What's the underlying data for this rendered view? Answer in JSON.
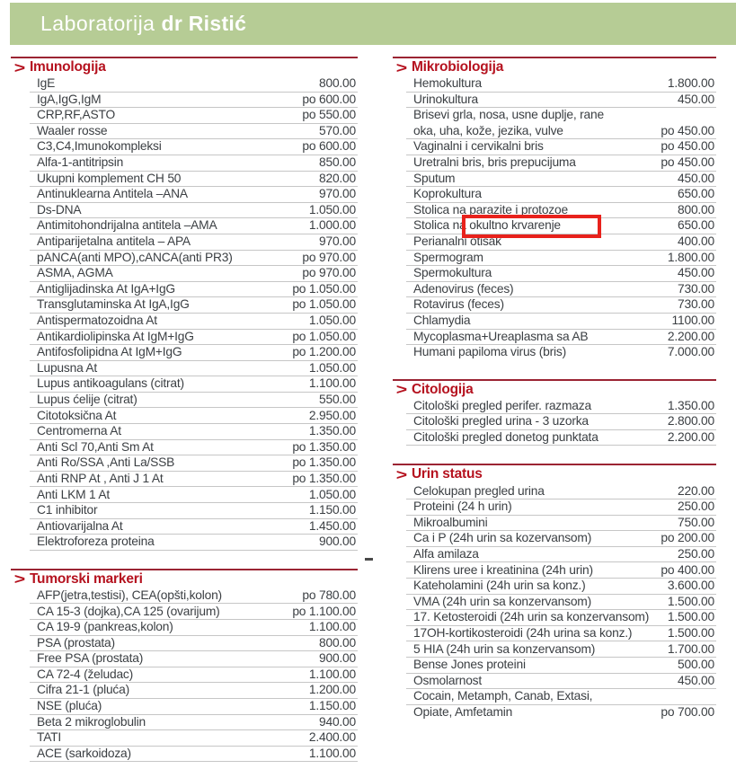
{
  "header": {
    "brand_regular": "Laboratorija",
    "brand_bold": "dr Ristić"
  },
  "colors": {
    "header_green": "#b6cc95",
    "heading_red": "#b5121f",
    "line_red": "#9b2433",
    "row_line": "#c6c6c6",
    "text": "#3b3f43",
    "highlight_red": "#e8221c"
  },
  "annotation": {
    "highlighted_text": "okultno krvarenje"
  },
  "columns": [
    {
      "sections": [
        {
          "title": "Imunologija",
          "rows": [
            {
              "name": "IgE",
              "price": "800.00"
            },
            {
              "name": "IgA,IgG,IgM",
              "price": "po 600.00"
            },
            {
              "name": "CRP,RF,ASTO",
              "price": "po 550.00"
            },
            {
              "name": "Waaler rosse",
              "price": "570.00"
            },
            {
              "name": "C3,C4,Imunokompleksi",
              "price": "po 600.00"
            },
            {
              "name": "Alfa-1-antitripsin",
              "price": "850.00"
            },
            {
              "name": "Ukupni komplement CH 50",
              "price": "820.00"
            },
            {
              "name": "Antinuklearna Antitela –ANA",
              "price": "970.00"
            },
            {
              "name": "Ds-DNA",
              "price": "1.050.00"
            },
            {
              "name": "Antimitohondrijalna antitela –AMA",
              "price": "1.000.00"
            },
            {
              "name": "Antiparijetalna antitela – APA",
              "price": "970.00"
            },
            {
              "name": "pANCA(anti MPO),cANCA(anti PR3)",
              "price": "po 970.00"
            },
            {
              "name": "ASMA, AGMA",
              "price": "po 970.00"
            },
            {
              "name": "Antiglijadinska At IgA+IgG",
              "price": "po 1.050.00"
            },
            {
              "name": "Transglutaminska At IgA,IgG",
              "price": "po 1.050.00"
            },
            {
              "name": "Antispermatozoidna At",
              "price": "1.050.00"
            },
            {
              "name": "Antikardiolipinska At IgM+IgG",
              "price": "po 1.050.00"
            },
            {
              "name": "Antifosfolipidna At IgM+IgG",
              "price": "po 1.200.00"
            },
            {
              "name": "Lupusna At",
              "price": "1.050.00"
            },
            {
              "name": "Lupus antikoagulans (citrat)",
              "price": "1.100.00"
            },
            {
              "name": "Lupus ćelije (citrat)",
              "price": "550.00"
            },
            {
              "name": "Citotoksična At",
              "price": "2.950.00"
            },
            {
              "name": "Centromerna At",
              "price": "1.350.00"
            },
            {
              "name": "Anti Scl 70,Anti Sm At",
              "price": "po 1.350.00"
            },
            {
              "name": "Anti Ro/SSA ,Anti La/SSB",
              "price": "po 1.350.00"
            },
            {
              "name": "Anti RNP At , Anti J 1 At",
              "price": "po 1.350.00"
            },
            {
              "name": "Anti LKM 1 At",
              "price": "1.050.00"
            },
            {
              "name": "C1 inhibitor",
              "price": "1.150.00"
            },
            {
              "name": "Antiovarijalna At",
              "price": "1.450.00"
            },
            {
              "name": "Elektroforeza proteina",
              "price": "900.00"
            }
          ]
        },
        {
          "title": "Tumorski markeri",
          "rows": [
            {
              "name": "AFP(jetra,testisi), CEA(opšti,kolon)",
              "price": "po 780.00"
            },
            {
              "name": "CA 15-3 (dojka),CA 125 (ovarijum)",
              "price": "po 1.100.00"
            },
            {
              "name": "CA 19-9 (pankreas,kolon)",
              "price": "1.100.00"
            },
            {
              "name": "PSA (prostata)",
              "price": "800.00"
            },
            {
              "name": "Free PSA (prostata)",
              "price": "900.00"
            },
            {
              "name": "CA 72-4 (želudac)",
              "price": "1.100.00"
            },
            {
              "name": "Cifra 21-1 (pluća)",
              "price": "1.200.00"
            },
            {
              "name": "NSE (pluća)",
              "price": "1.150.00"
            },
            {
              "name": "Beta 2 mikroglobulin",
              "price": "940.00"
            },
            {
              "name": "TATI",
              "price": "2.400.00"
            },
            {
              "name": "ACE (sarkoidoza)",
              "price": "1.100.00"
            }
          ]
        }
      ]
    },
    {
      "sections": [
        {
          "title": "Mikrobiologija",
          "rows": [
            {
              "name": "Hemokultura",
              "price": "1.800.00"
            },
            {
              "name": "Urinokultura",
              "price": "450.00"
            },
            {
              "name": "Brisevi grla, nosa, usne duplje, rane",
              "price": "",
              "no_underline": true
            },
            {
              "name": "oka, uha, kože, jezika, vulve",
              "price": "po 450.00"
            },
            {
              "name": "Vaginalni i cervikalni bris",
              "price": "po 450.00"
            },
            {
              "name": "Uretralni bris, bris prepucijuma",
              "price": "po 450.00"
            },
            {
              "name": "Sputum",
              "price": "450.00"
            },
            {
              "name": "Koprokultura",
              "price": "650.00"
            },
            {
              "name": "Stolica na parazite i protozoe",
              "price": "800.00"
            },
            {
              "prefix": "Stolica na ",
              "highlight": "okultno krvarenje",
              "price": "650.00"
            },
            {
              "name": "Perianalni otisak",
              "price": "400.00"
            },
            {
              "name": "Spermogram",
              "price": "1.800.00"
            },
            {
              "name": "Spermokultura",
              "price": "450.00"
            },
            {
              "name": "Adenovirus (feces)",
              "price": "730.00"
            },
            {
              "name": "Rotavirus (feces)",
              "price": "730.00"
            },
            {
              "name": "Chlamydia",
              "price": "1100.00"
            },
            {
              "name": "Mycoplasma+Ureaplasma sa AB",
              "price": "2.200.00"
            },
            {
              "name": "Humani papiloma virus (bris)",
              "price": "7.000.00",
              "no_underline": true
            }
          ]
        },
        {
          "title": "Citologija",
          "rows": [
            {
              "name": "Citološki pregled perifer. razmaza",
              "price": "1.350.00"
            },
            {
              "name": "Citološki pregled urina - 3 uzorka",
              "price": "2.800.00"
            },
            {
              "name": "Citološki pregled donetog punktata",
              "price": "2.200.00"
            }
          ]
        },
        {
          "title": "Urin status",
          "rows": [
            {
              "name": "Celokupan pregled urina",
              "price": "220.00"
            },
            {
              "name": "Proteini (24 h urin)",
              "price": "250.00"
            },
            {
              "name": "Mikroalbumini",
              "price": "750.00"
            },
            {
              "name": "Ca i P (24h urin sa kozervansom)",
              "price": "po 200.00"
            },
            {
              "name": "Alfa amilaza",
              "price": "250.00"
            },
            {
              "name": "Klirens uree i kreatinina (24h urin)",
              "price": "po 400.00"
            },
            {
              "name": "Kateholamini (24h urin sa konz.)",
              "price": "3.600.00"
            },
            {
              "name": "VMA (24h urin sa konzervansom)",
              "price": "1.500.00"
            },
            {
              "name": "17. Ketosteroidi (24h urin sa konzervansom)",
              "price": "1.500.00"
            },
            {
              "name": "17OH-kortikosteroidi (24h urina sa konz.)",
              "price": "1.500.00"
            },
            {
              "name": "5 HIA (24h urin sa konzervansom)",
              "price": "1.700.00"
            },
            {
              "name": "Bense Jones proteini",
              "price": "500.00"
            },
            {
              "name": "Osmolarnost",
              "price": "450.00"
            },
            {
              "name": "Cocain, Metamph, Canab, Extasi,",
              "price": ""
            },
            {
              "name": "Opiate, Amfetamin",
              "price": "po 700.00",
              "no_underline": true
            }
          ]
        }
      ]
    }
  ]
}
